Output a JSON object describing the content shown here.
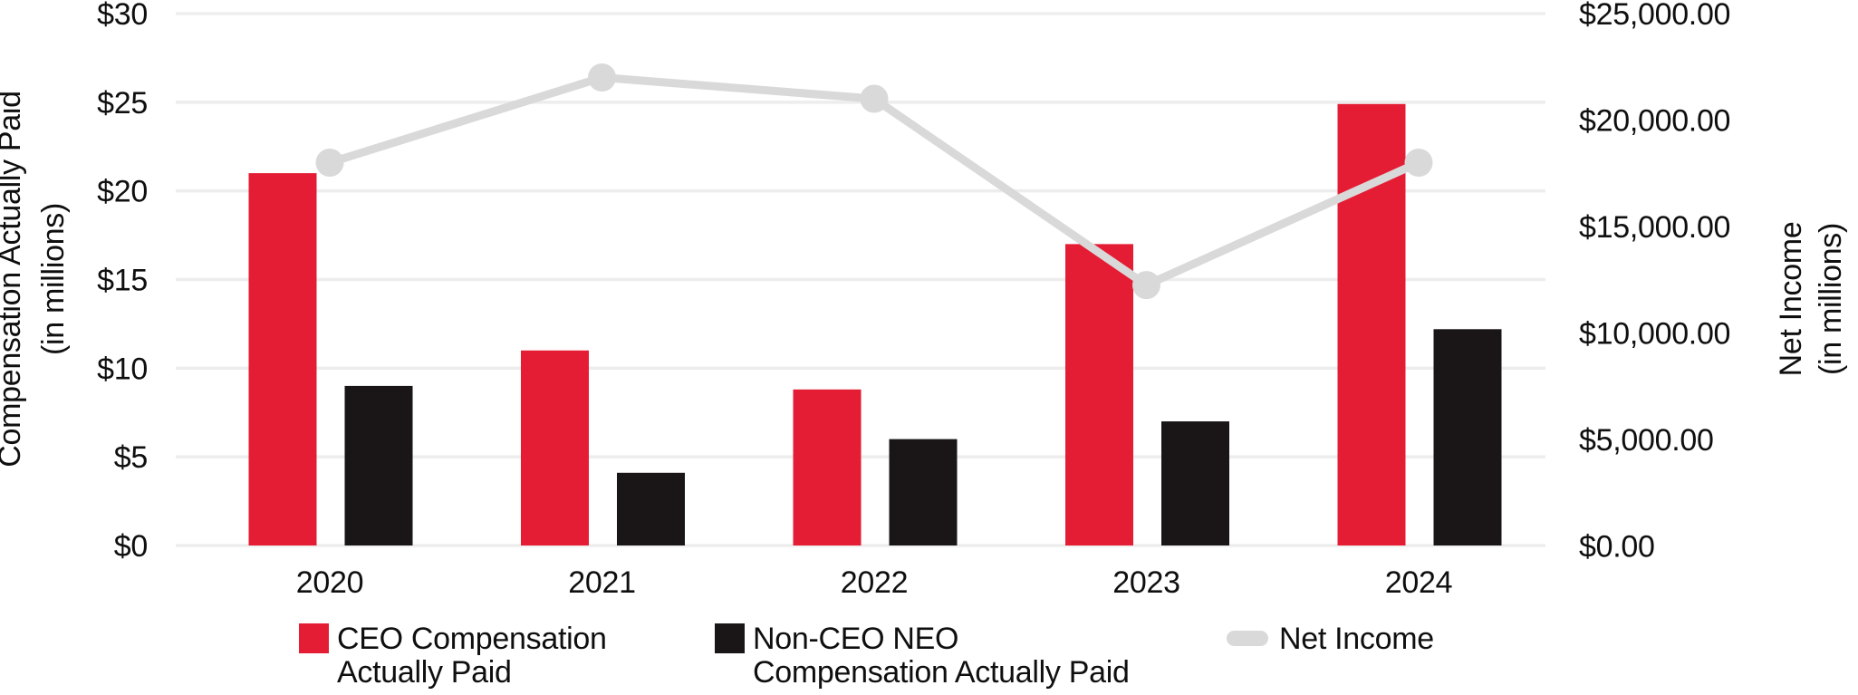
{
  "chart_data": {
    "type": "combo",
    "categories": [
      "2020",
      "2021",
      "2022",
      "2023",
      "2024"
    ],
    "series": [
      {
        "name": "CEO Compensation Actually Paid",
        "type": "bar",
        "axis": "left",
        "color": "#E41D35",
        "values": [
          21.0,
          11.0,
          8.8,
          17.0,
          24.9
        ]
      },
      {
        "name": "Non-CEO NEO Compensation Actually Paid",
        "type": "bar",
        "axis": "left",
        "color": "#1A1617",
        "values": [
          9.0,
          4.1,
          6.0,
          7.0,
          12.2
        ]
      },
      {
        "name": "Net Income",
        "type": "line",
        "axis": "right",
        "color": "#D9D9D9",
        "values": [
          18000,
          22000,
          21000,
          12250,
          18000
        ]
      }
    ],
    "left_axis": {
      "title_line1": "Compensation Actually Paid",
      "title_line2": "(in millions)",
      "min": 0,
      "max": 30,
      "step": 5,
      "tick_labels": [
        "$0",
        "$5",
        "$10",
        "$15",
        "$20",
        "$25",
        "$30"
      ]
    },
    "right_axis": {
      "title_line1": "Net Income",
      "title_line2": "(in millions)",
      "min": 0,
      "max": 25000,
      "step": 5000,
      "tick_labels": [
        "$0.00",
        "$5,000.00",
        "$10,000.00",
        "$15,000.00",
        "$20,000.00",
        "$25,000.00"
      ]
    },
    "legend": [
      {
        "swatch": "square",
        "color": "#E41D35",
        "lines": [
          "CEO Compensation",
          "Actually Paid"
        ]
      },
      {
        "swatch": "square",
        "color": "#1A1617",
        "lines": [
          "Non-CEO NEO",
          "Compensation Actually Paid"
        ]
      },
      {
        "swatch": "line",
        "color": "#D9D9D9",
        "lines": [
          "Net Income"
        ]
      }
    ],
    "grid": true,
    "legend_position": "bottom"
  },
  "style": {
    "background": "#FFFFFF",
    "grid_color": "#EDEDED",
    "text_color": "#0F0F0F"
  }
}
